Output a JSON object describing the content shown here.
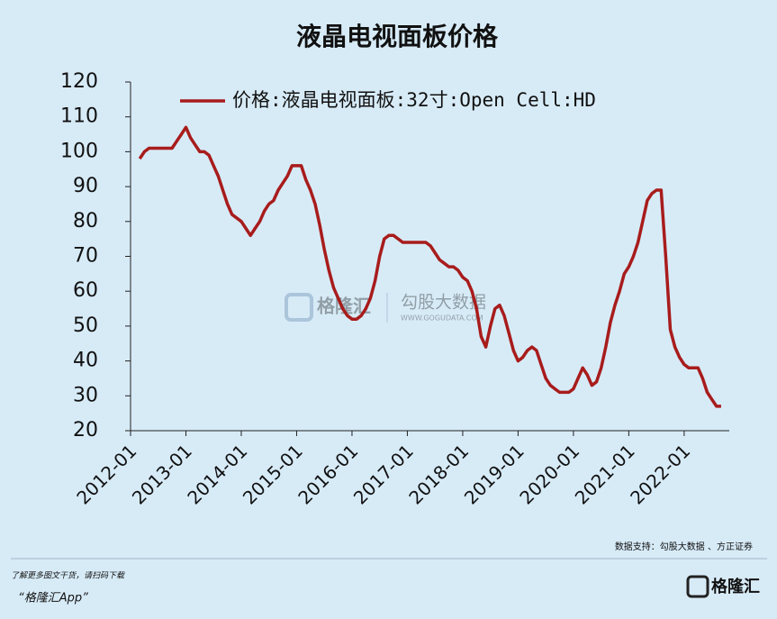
{
  "chart_data": {
    "type": "line",
    "title": "液晶电视面板价格",
    "x": [
      "2012-03",
      "2012-04",
      "2012-05",
      "2012-06",
      "2012-07",
      "2012-08",
      "2012-09",
      "2012-10",
      "2012-11",
      "2012-12",
      "2013-01",
      "2013-02",
      "2013-03",
      "2013-04",
      "2013-05",
      "2013-06",
      "2013-07",
      "2013-08",
      "2013-09",
      "2013-10",
      "2013-11",
      "2013-12",
      "2014-01",
      "2014-02",
      "2014-03",
      "2014-04",
      "2014-05",
      "2014-06",
      "2014-07",
      "2014-08",
      "2014-09",
      "2014-10",
      "2014-11",
      "2014-12",
      "2015-01",
      "2015-02",
      "2015-03",
      "2015-04",
      "2015-05",
      "2015-06",
      "2015-07",
      "2015-08",
      "2015-09",
      "2015-10",
      "2015-11",
      "2015-12",
      "2016-01",
      "2016-02",
      "2016-03",
      "2016-04",
      "2016-05",
      "2016-06",
      "2016-07",
      "2016-08",
      "2016-09",
      "2016-10",
      "2016-11",
      "2016-12",
      "2017-01",
      "2017-02",
      "2017-03",
      "2017-04",
      "2017-05",
      "2017-06",
      "2017-07",
      "2017-08",
      "2017-09",
      "2017-10",
      "2017-11",
      "2017-12",
      "2018-01",
      "2018-02",
      "2018-03",
      "2018-04",
      "2018-05",
      "2018-06",
      "2018-07",
      "2018-08",
      "2018-09",
      "2018-10",
      "2018-11",
      "2018-12",
      "2019-01",
      "2019-02",
      "2019-03",
      "2019-04",
      "2019-05",
      "2019-06",
      "2019-07",
      "2019-08",
      "2019-09",
      "2019-10",
      "2019-11",
      "2019-12",
      "2020-01",
      "2020-02",
      "2020-03",
      "2020-04",
      "2020-05",
      "2020-06",
      "2020-07",
      "2020-08",
      "2020-09",
      "2020-10",
      "2020-11",
      "2020-12",
      "2021-01",
      "2021-02",
      "2021-03",
      "2021-04",
      "2021-05",
      "2021-06",
      "2021-07",
      "2021-08",
      "2021-09",
      "2021-10",
      "2021-11",
      "2021-12",
      "2022-01",
      "2022-02",
      "2022-03",
      "2022-04",
      "2022-05",
      "2022-06",
      "2022-07",
      "2022-08",
      "2022-09"
    ],
    "series": [
      {
        "name": "价格:液晶电视面板:32寸:Open Cell:HD",
        "color": "#a81c1c",
        "values": [
          98,
          100,
          101,
          101,
          101,
          101,
          101,
          101,
          103,
          105,
          107,
          104,
          102,
          100,
          100,
          99,
          96,
          93,
          89,
          85,
          82,
          81,
          80,
          78,
          76,
          78,
          80,
          83,
          85,
          86,
          89,
          91,
          93,
          96,
          96,
          96,
          92,
          89,
          85,
          79,
          72,
          66,
          61,
          58,
          55,
          53,
          52,
          52,
          53,
          55,
          58,
          63,
          70,
          75,
          76,
          76,
          75,
          74,
          74,
          74,
          74,
          74,
          74,
          73,
          71,
          69,
          68,
          67,
          67,
          66,
          64,
          63,
          60,
          55,
          47,
          44,
          50,
          55,
          56,
          53,
          48,
          43,
          40,
          41,
          43,
          44,
          43,
          39,
          35,
          33,
          32,
          31,
          31,
          31,
          32,
          35,
          38,
          36,
          33,
          34,
          38,
          44,
          51,
          56,
          60,
          65,
          67,
          70,
          74,
          80,
          86,
          88,
          89,
          89,
          70,
          49,
          44,
          41,
          39,
          38,
          38,
          38,
          35,
          31,
          29,
          27,
          27
        ]
      }
    ],
    "xlim": [
      "2012-01",
      "2022-10"
    ],
    "xticks": [
      "2012-01",
      "2013-01",
      "2014-01",
      "2015-01",
      "2016-01",
      "2017-01",
      "2018-01",
      "2019-01",
      "2020-01",
      "2021-01",
      "2022-01"
    ],
    "ylim": [
      20,
      120
    ],
    "yticks": [
      20,
      30,
      40,
      50,
      60,
      70,
      80,
      90,
      100,
      110,
      120
    ]
  },
  "watermark": {
    "brand": "格隆汇",
    "site": "勾股大数据",
    "url": "WWW.GOGUDATA.COM"
  },
  "footer": {
    "source": "数据支持：勾股大数据 、方正证券",
    "promo": "了解更多图文干货，请扫码下载",
    "app": "“格隆汇App”",
    "logo": "格隆汇"
  }
}
